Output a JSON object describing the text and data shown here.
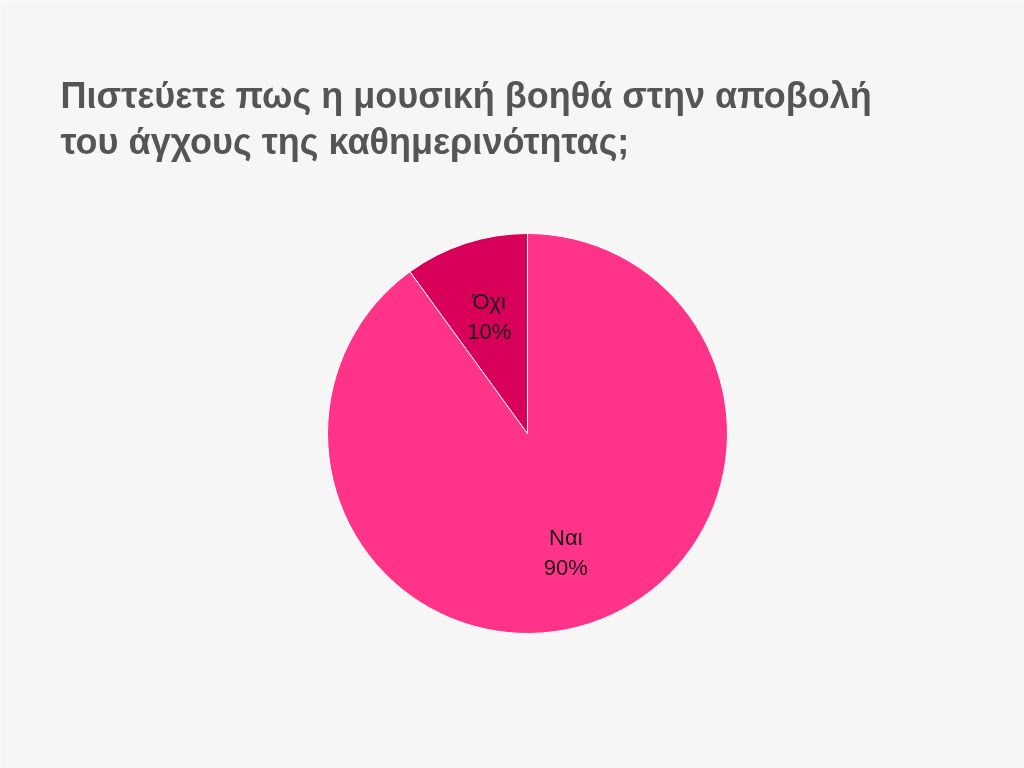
{
  "chart_data": {
    "type": "pie",
    "title": "Πιστεύετε πως η μουσική βοηθά στην αποβολή του άγχους της καθημερινότητας;",
    "categories": [
      "Ναι",
      "Όχι"
    ],
    "values": [
      90,
      10
    ],
    "colors": [
      "#ff3388",
      "#d9005a"
    ],
    "value_labels": [
      "90%",
      "10%"
    ]
  }
}
